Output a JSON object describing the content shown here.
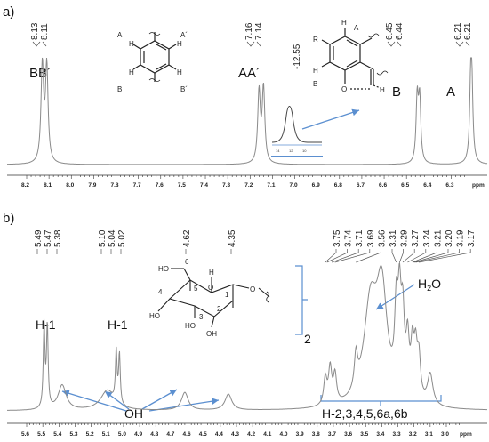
{
  "figure": {
    "panel_a": {
      "label": "a)",
      "unit": "ppm",
      "peak_labels": [
        {
          "text": "BB´",
          "for": 8.12
        },
        {
          "text": "AA´",
          "for": 7.15
        },
        {
          "text": "B",
          "for": 6.445
        },
        {
          "text": "A",
          "for": 6.21
        }
      ],
      "shift_labels": [
        "8.13",
        "8.11",
        "7.16",
        "7.14",
        "6.45",
        "6.44",
        "6.21",
        "6.21",
        "-12.55"
      ],
      "structure_labels": {
        "A": "A",
        "A_prime": "A´",
        "B": "B",
        "B_prime": "B´",
        "R": "R",
        "H": "H",
        "O": "O"
      },
      "inset_ticks": [
        "14",
        "12",
        "10"
      ],
      "axis_ticks": [
        "8.2",
        "8.1",
        "8.0",
        "7.9",
        "7.8",
        "7.7",
        "7.6",
        "7.5",
        "7.4",
        "7.3",
        "7.2",
        "7.1",
        "7.0",
        "6.9",
        "6.8",
        "6.7",
        "6.6",
        "6.5",
        "6.4",
        "6.3",
        "ppm"
      ]
    },
    "panel_b": {
      "label": "b)",
      "unit": "ppm",
      "shift_labels_left": [
        "5.49",
        "5.47",
        "5.38",
        "5.10",
        "5.04",
        "5.02",
        "4.62",
        "4.35"
      ],
      "shift_labels_right": [
        "3.75",
        "3.74",
        "3.71",
        "3.69",
        "3.56",
        "3.31",
        "3.29",
        "3.27",
        "3.24",
        "3.21",
        "3.20",
        "3.19",
        "3.17"
      ],
      "peak_labels": {
        "h1_a": "H-1",
        "h1_b": "H-1",
        "oh": "OH",
        "water_h": "H",
        "water_sub": "2",
        "water_o": "O",
        "ring": "H-2,3,4,5,6a,6b",
        "fragment": "2"
      },
      "structure_labels": {
        "c6": "6",
        "c5": "5",
        "c4": "4",
        "c3": "3",
        "c2": "2",
        "c1": "1",
        "ring_o": "O",
        "ho4": "HO",
        "ho3": "HO",
        "oh2": "OH",
        "o_link": "O",
        "h": "H"
      },
      "axis_ticks": [
        "5.6",
        "5.5",
        "5.4",
        "5.3",
        "5.2",
        "5.1",
        "5.0",
        "4.9",
        "4.8",
        "4.7",
        "4.6",
        "4.5",
        "4.4",
        "4.3",
        "4.2",
        "4.1",
        "4.0",
        "3.9",
        "3.8",
        "3.7",
        "3.6",
        "3.5",
        "3.4",
        "3.3",
        "3.2",
        "3.1",
        "3.0",
        "ppm"
      ]
    },
    "colors": {
      "spectrum": "#8a8a8a",
      "arrow": "#5b8fd0",
      "bracket": "#5b8fd0",
      "text": "#111111"
    }
  }
}
